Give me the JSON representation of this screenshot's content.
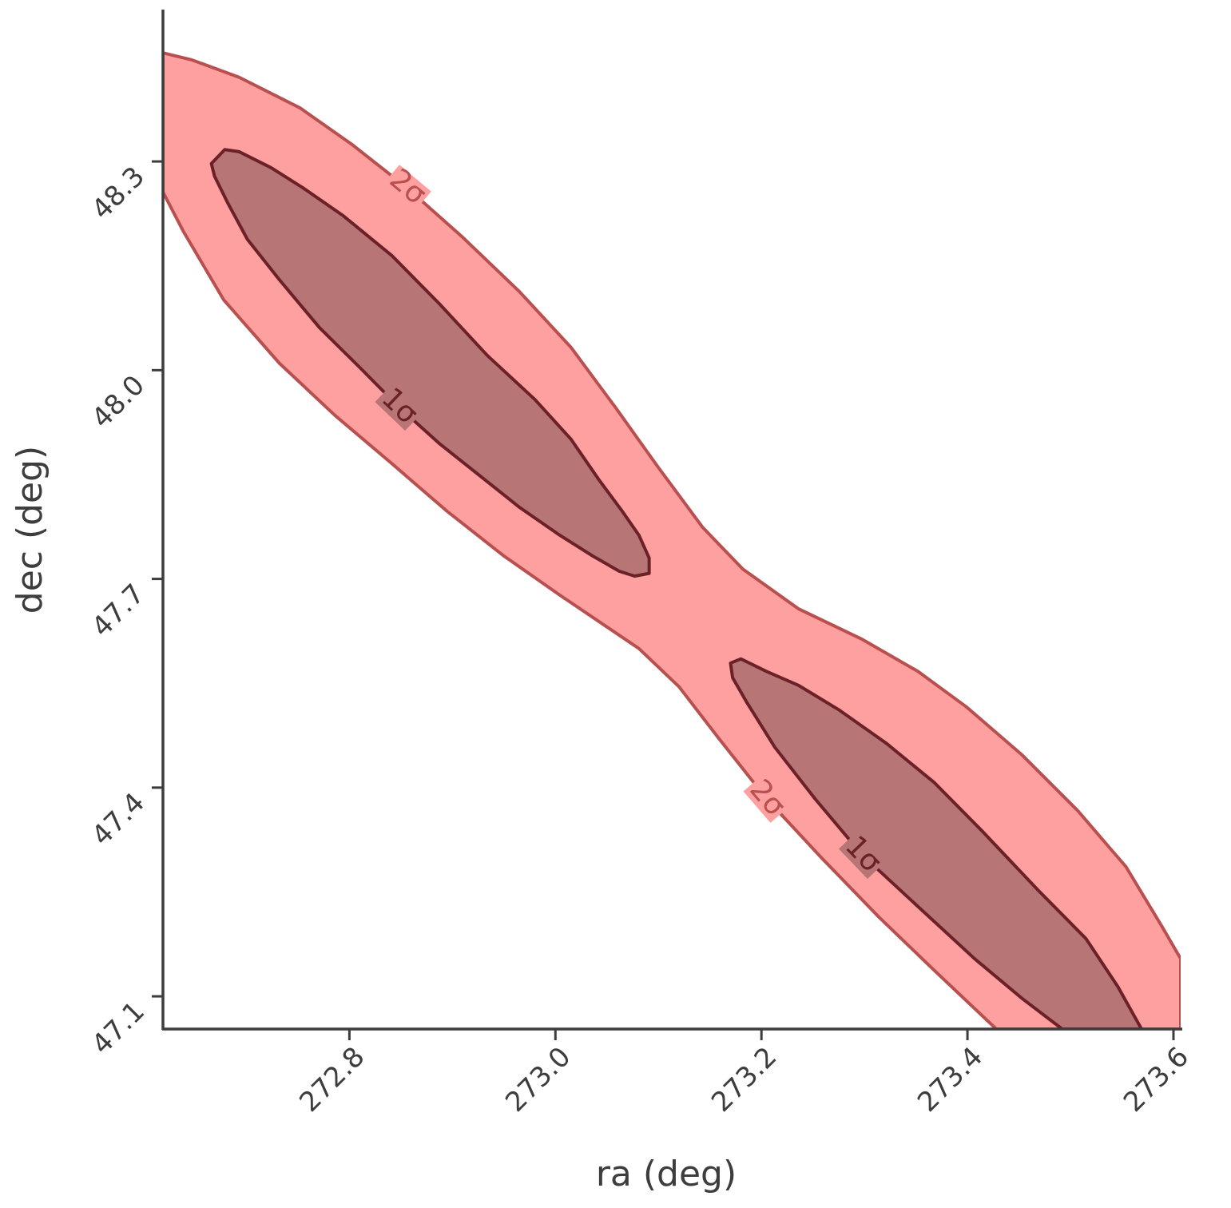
{
  "chart_data": {
    "type": "contour",
    "xlabel": "ra (deg)",
    "ylabel": "dec (deg)",
    "xlim": [
      272.619,
      273.607
    ],
    "ylim": [
      47.053,
      48.516
    ],
    "xticks": [
      272.8,
      {
        "value": 273,
        "label": "273.0"
      },
      273.2,
      273.4,
      273.6
    ],
    "yticks": [
      47.1,
      47.4,
      47.7,
      {
        "value": 48,
        "label": "48.0"
      },
      48.3
    ],
    "series": [
      {
        "name": "2σ",
        "color": "#ffa0a0",
        "edge_color": "#b85050",
        "x": [
          272.619,
          272.647,
          272.693,
          272.752,
          272.802,
          272.856,
          272.91,
          272.965,
          273.015,
          273.058,
          273.1,
          273.143,
          273.182,
          273.236,
          273.298,
          273.352,
          273.399,
          273.453,
          273.507,
          273.554,
          273.589,
          273.607,
          273.607,
          273.428,
          273.368,
          273.314,
          273.259,
          273.205,
          273.159,
          273.12,
          273.081,
          273.05,
          273.004,
          272.949,
          272.895,
          272.841,
          272.786,
          272.732,
          272.678,
          272.639,
          272.619
        ],
        "y": [
          48.456,
          48.446,
          48.421,
          48.377,
          48.325,
          48.262,
          48.191,
          48.113,
          48.033,
          47.947,
          47.86,
          47.774,
          47.714,
          47.657,
          47.613,
          47.567,
          47.516,
          47.447,
          47.367,
          47.286,
          47.2,
          47.154,
          47.053,
          47.053,
          47.137,
          47.214,
          47.298,
          47.384,
          47.47,
          47.545,
          47.6,
          47.631,
          47.677,
          47.734,
          47.797,
          47.866,
          47.935,
          48.01,
          48.101,
          48.199,
          48.256
        ]
      },
      {
        "name": "1σ",
        "color": "#b87575",
        "edge_color": "#6b2128",
        "x": [
          272.666,
          272.679,
          272.693,
          272.724,
          272.755,
          272.794,
          272.841,
          272.887,
          272.934,
          272.98,
          273.015,
          273.042,
          273.065,
          273.081,
          273.091,
          273.091,
          273.077,
          273.062,
          273.035,
          273.004,
          272.965,
          272.926,
          272.887,
          272.848,
          272.81,
          272.771,
          272.732,
          272.701,
          272.682,
          272.669
        ],
        "y": [
          48.297,
          48.317,
          48.314,
          48.291,
          48.262,
          48.222,
          48.165,
          48.096,
          48.021,
          47.958,
          47.901,
          47.843,
          47.797,
          47.763,
          47.73,
          47.708,
          47.704,
          47.711,
          47.734,
          47.763,
          47.803,
          47.849,
          47.895,
          47.947,
          48.004,
          48.061,
          48.13,
          48.188,
          48.24,
          48.279
        ]
      },
      {
        "name": "1σ",
        "color": "#b87575",
        "edge_color": "#6b2128",
        "x": [
          273.17,
          273.18,
          273.205,
          273.236,
          273.275,
          273.321,
          273.368,
          273.414,
          273.469,
          273.515,
          273.546,
          273.569,
          273.492,
          273.453,
          273.407,
          273.352,
          273.298,
          273.252,
          273.213,
          273.186,
          273.172
        ],
        "y": [
          47.579,
          47.585,
          47.567,
          47.547,
          47.512,
          47.464,
          47.407,
          47.338,
          47.252,
          47.183,
          47.114,
          47.053,
          47.053,
          47.097,
          47.154,
          47.229,
          47.303,
          47.384,
          47.458,
          47.522,
          47.558
        ]
      }
    ]
  }
}
